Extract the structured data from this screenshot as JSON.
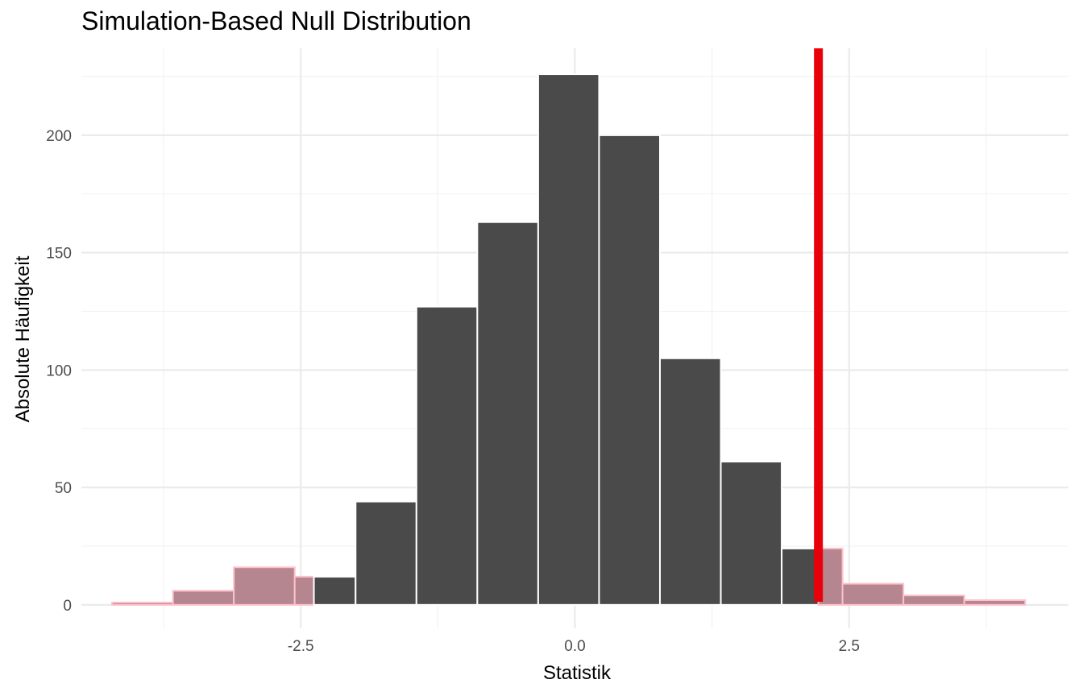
{
  "chart_data": {
    "type": "bar",
    "title": "Simulation-Based Null Distribution",
    "xlabel": "Statistik",
    "ylabel": "Absolute Häufigkeit",
    "xlim": [
      -4.5,
      4.5
    ],
    "ylim": [
      -10,
      237
    ],
    "xticks": [
      -2.5,
      0.0,
      2.5
    ],
    "xtick_labels": [
      "-2.5",
      "0.0",
      "2.5"
    ],
    "yticks": [
      0,
      50,
      100,
      150,
      200
    ],
    "ytick_labels": [
      "0",
      "50",
      "100",
      "150",
      "200"
    ],
    "grid": true,
    "bin_width": 0.555,
    "bins": [
      {
        "start": -4.22,
        "end": -3.665,
        "count": 1,
        "shaded": true
      },
      {
        "start": -3.665,
        "end": -3.11,
        "count": 6,
        "shaded": true
      },
      {
        "start": -3.11,
        "end": -2.555,
        "count": 16,
        "shaded": true
      },
      {
        "start": -2.555,
        "end": -2.38,
        "count": 12,
        "shaded": true
      },
      {
        "start": -2.38,
        "end": -2.0,
        "count": 12,
        "shaded": false
      },
      {
        "start": -2.0,
        "end": -1.445,
        "count": 44,
        "shaded": false
      },
      {
        "start": -1.445,
        "end": -0.89,
        "count": 127,
        "shaded": false
      },
      {
        "start": -0.89,
        "end": -0.335,
        "count": 163,
        "shaded": false
      },
      {
        "start": -0.335,
        "end": 0.22,
        "count": 226,
        "shaded": false
      },
      {
        "start": 0.22,
        "end": 0.775,
        "count": 200,
        "shaded": false
      },
      {
        "start": 0.775,
        "end": 1.33,
        "count": 105,
        "shaded": false
      },
      {
        "start": 1.33,
        "end": 1.885,
        "count": 61,
        "shaded": false
      },
      {
        "start": 1.885,
        "end": 2.22,
        "count": 24,
        "shaded": false
      },
      {
        "start": 2.22,
        "end": 2.44,
        "count": 24,
        "shaded": true
      },
      {
        "start": 2.44,
        "end": 2.995,
        "count": 9,
        "shaded": true
      },
      {
        "start": 2.995,
        "end": 3.55,
        "count": 4,
        "shaded": true
      },
      {
        "start": 3.55,
        "end": 4.105,
        "count": 2,
        "shaded": true
      }
    ],
    "observed_statistic": 2.22,
    "colors": {
      "bar": "#4a4a4a",
      "shaded_fill": "#b5868f",
      "shaded_outline": "#ffc0cb",
      "bar_outline": "#ffffff",
      "observed_line": "#e8000b",
      "grid_major": "#ebebeb",
      "grid_minor": "#f2f2f2"
    }
  }
}
